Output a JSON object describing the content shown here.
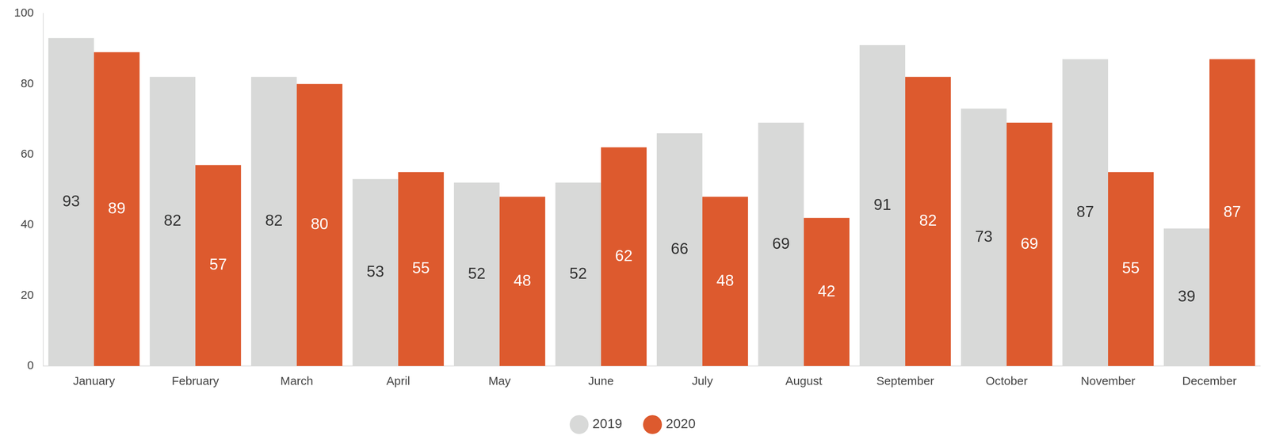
{
  "chart_data": {
    "type": "bar",
    "categories": [
      "January",
      "February",
      "March",
      "April",
      "May",
      "June",
      "July",
      "August",
      "September",
      "October",
      "November",
      "December"
    ],
    "series": [
      {
        "name": "2019",
        "color": "#d8d9d8",
        "values": [
          93,
          82,
          82,
          53,
          52,
          52,
          66,
          69,
          91,
          73,
          87,
          39
        ]
      },
      {
        "name": "2020",
        "color": "#dd5a2e",
        "values": [
          89,
          57,
          80,
          55,
          48,
          62,
          48,
          42,
          82,
          69,
          55,
          87
        ]
      }
    ],
    "ylim": [
      0,
      100
    ],
    "yticks": [
      0,
      20,
      40,
      60,
      80,
      100
    ],
    "grid": false,
    "legend": "bottom",
    "data_labels": true
  }
}
